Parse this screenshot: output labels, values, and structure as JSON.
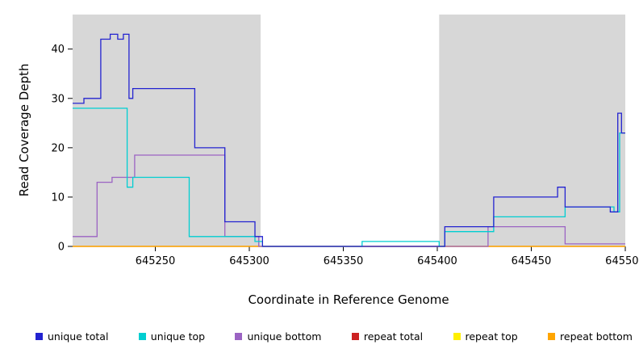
{
  "chart_data": {
    "type": "line",
    "subtype": "step-coverage-plot",
    "title": "",
    "xlabel": "Coordinate in Reference Genome",
    "ylabel": "Read Coverage Depth",
    "xlim": [
      645206,
      645500
    ],
    "ylim": [
      0,
      47
    ],
    "x_ticks": [
      645250,
      645300,
      645350,
      645400,
      645450,
      645500
    ],
    "y_ticks": [
      0,
      10,
      20,
      30,
      40
    ],
    "grid": false,
    "plot_background": "#ffffff",
    "shaded_regions": [
      {
        "x0": 645206,
        "x1": 645306,
        "color": "#d7d7d7"
      },
      {
        "x0": 645401,
        "x1": 645500,
        "color": "#d7d7d7"
      }
    ],
    "series": [
      {
        "name": "repeat total",
        "color": "#cc2222",
        "points": [
          [
            645206,
            0
          ]
        ]
      },
      {
        "name": "repeat top",
        "color": "#ffef00",
        "points": [
          [
            645206,
            0
          ]
        ]
      },
      {
        "name": "repeat bottom",
        "color": "#ffa500",
        "points": [
          [
            645206,
            0
          ]
        ]
      },
      {
        "name": "unique bottom",
        "color": "#9b63c3",
        "points": [
          [
            645206,
            2
          ],
          [
            645219,
            13
          ],
          [
            645227,
            14
          ],
          [
            645239,
            18.5
          ],
          [
            645287,
            2
          ],
          [
            645305,
            0
          ],
          [
            645427,
            4
          ],
          [
            645468,
            0.5
          ]
        ]
      },
      {
        "name": "unique top",
        "color": "#00ced1",
        "points": [
          [
            645206,
            28
          ],
          [
            645235,
            12
          ],
          [
            645238,
            14
          ],
          [
            645268,
            2
          ],
          [
            645303,
            1
          ],
          [
            645307,
            0
          ],
          [
            645360,
            1
          ],
          [
            645401,
            0
          ],
          [
            645404,
            3
          ],
          [
            645430,
            6
          ],
          [
            645468,
            8
          ],
          [
            645494,
            7
          ],
          [
            645497,
            23
          ]
        ]
      },
      {
        "name": "unique total",
        "color": "#2323d0",
        "points": [
          [
            645206,
            29
          ],
          [
            645212,
            30
          ],
          [
            645221,
            42
          ],
          [
            645226,
            43
          ],
          [
            645230,
            42
          ],
          [
            645233,
            43
          ],
          [
            645236,
            30
          ],
          [
            645238,
            32
          ],
          [
            645271,
            20
          ],
          [
            645287,
            5
          ],
          [
            645303,
            2
          ],
          [
            645307,
            0
          ],
          [
            645404,
            4
          ],
          [
            645430,
            10
          ],
          [
            645464,
            12
          ],
          [
            645468,
            8
          ],
          [
            645492,
            7
          ],
          [
            645496,
            27
          ],
          [
            645498,
            23
          ]
        ]
      }
    ],
    "legend": {
      "position": "bottom",
      "items": [
        {
          "label": "unique total",
          "color": "#2323d0"
        },
        {
          "label": "unique top",
          "color": "#00ced1"
        },
        {
          "label": "unique bottom",
          "color": "#9b63c3"
        },
        {
          "label": "repeat total",
          "color": "#cc2222"
        },
        {
          "label": "repeat top",
          "color": "#ffef00"
        },
        {
          "label": "repeat bottom",
          "color": "#ffa500"
        }
      ]
    }
  }
}
